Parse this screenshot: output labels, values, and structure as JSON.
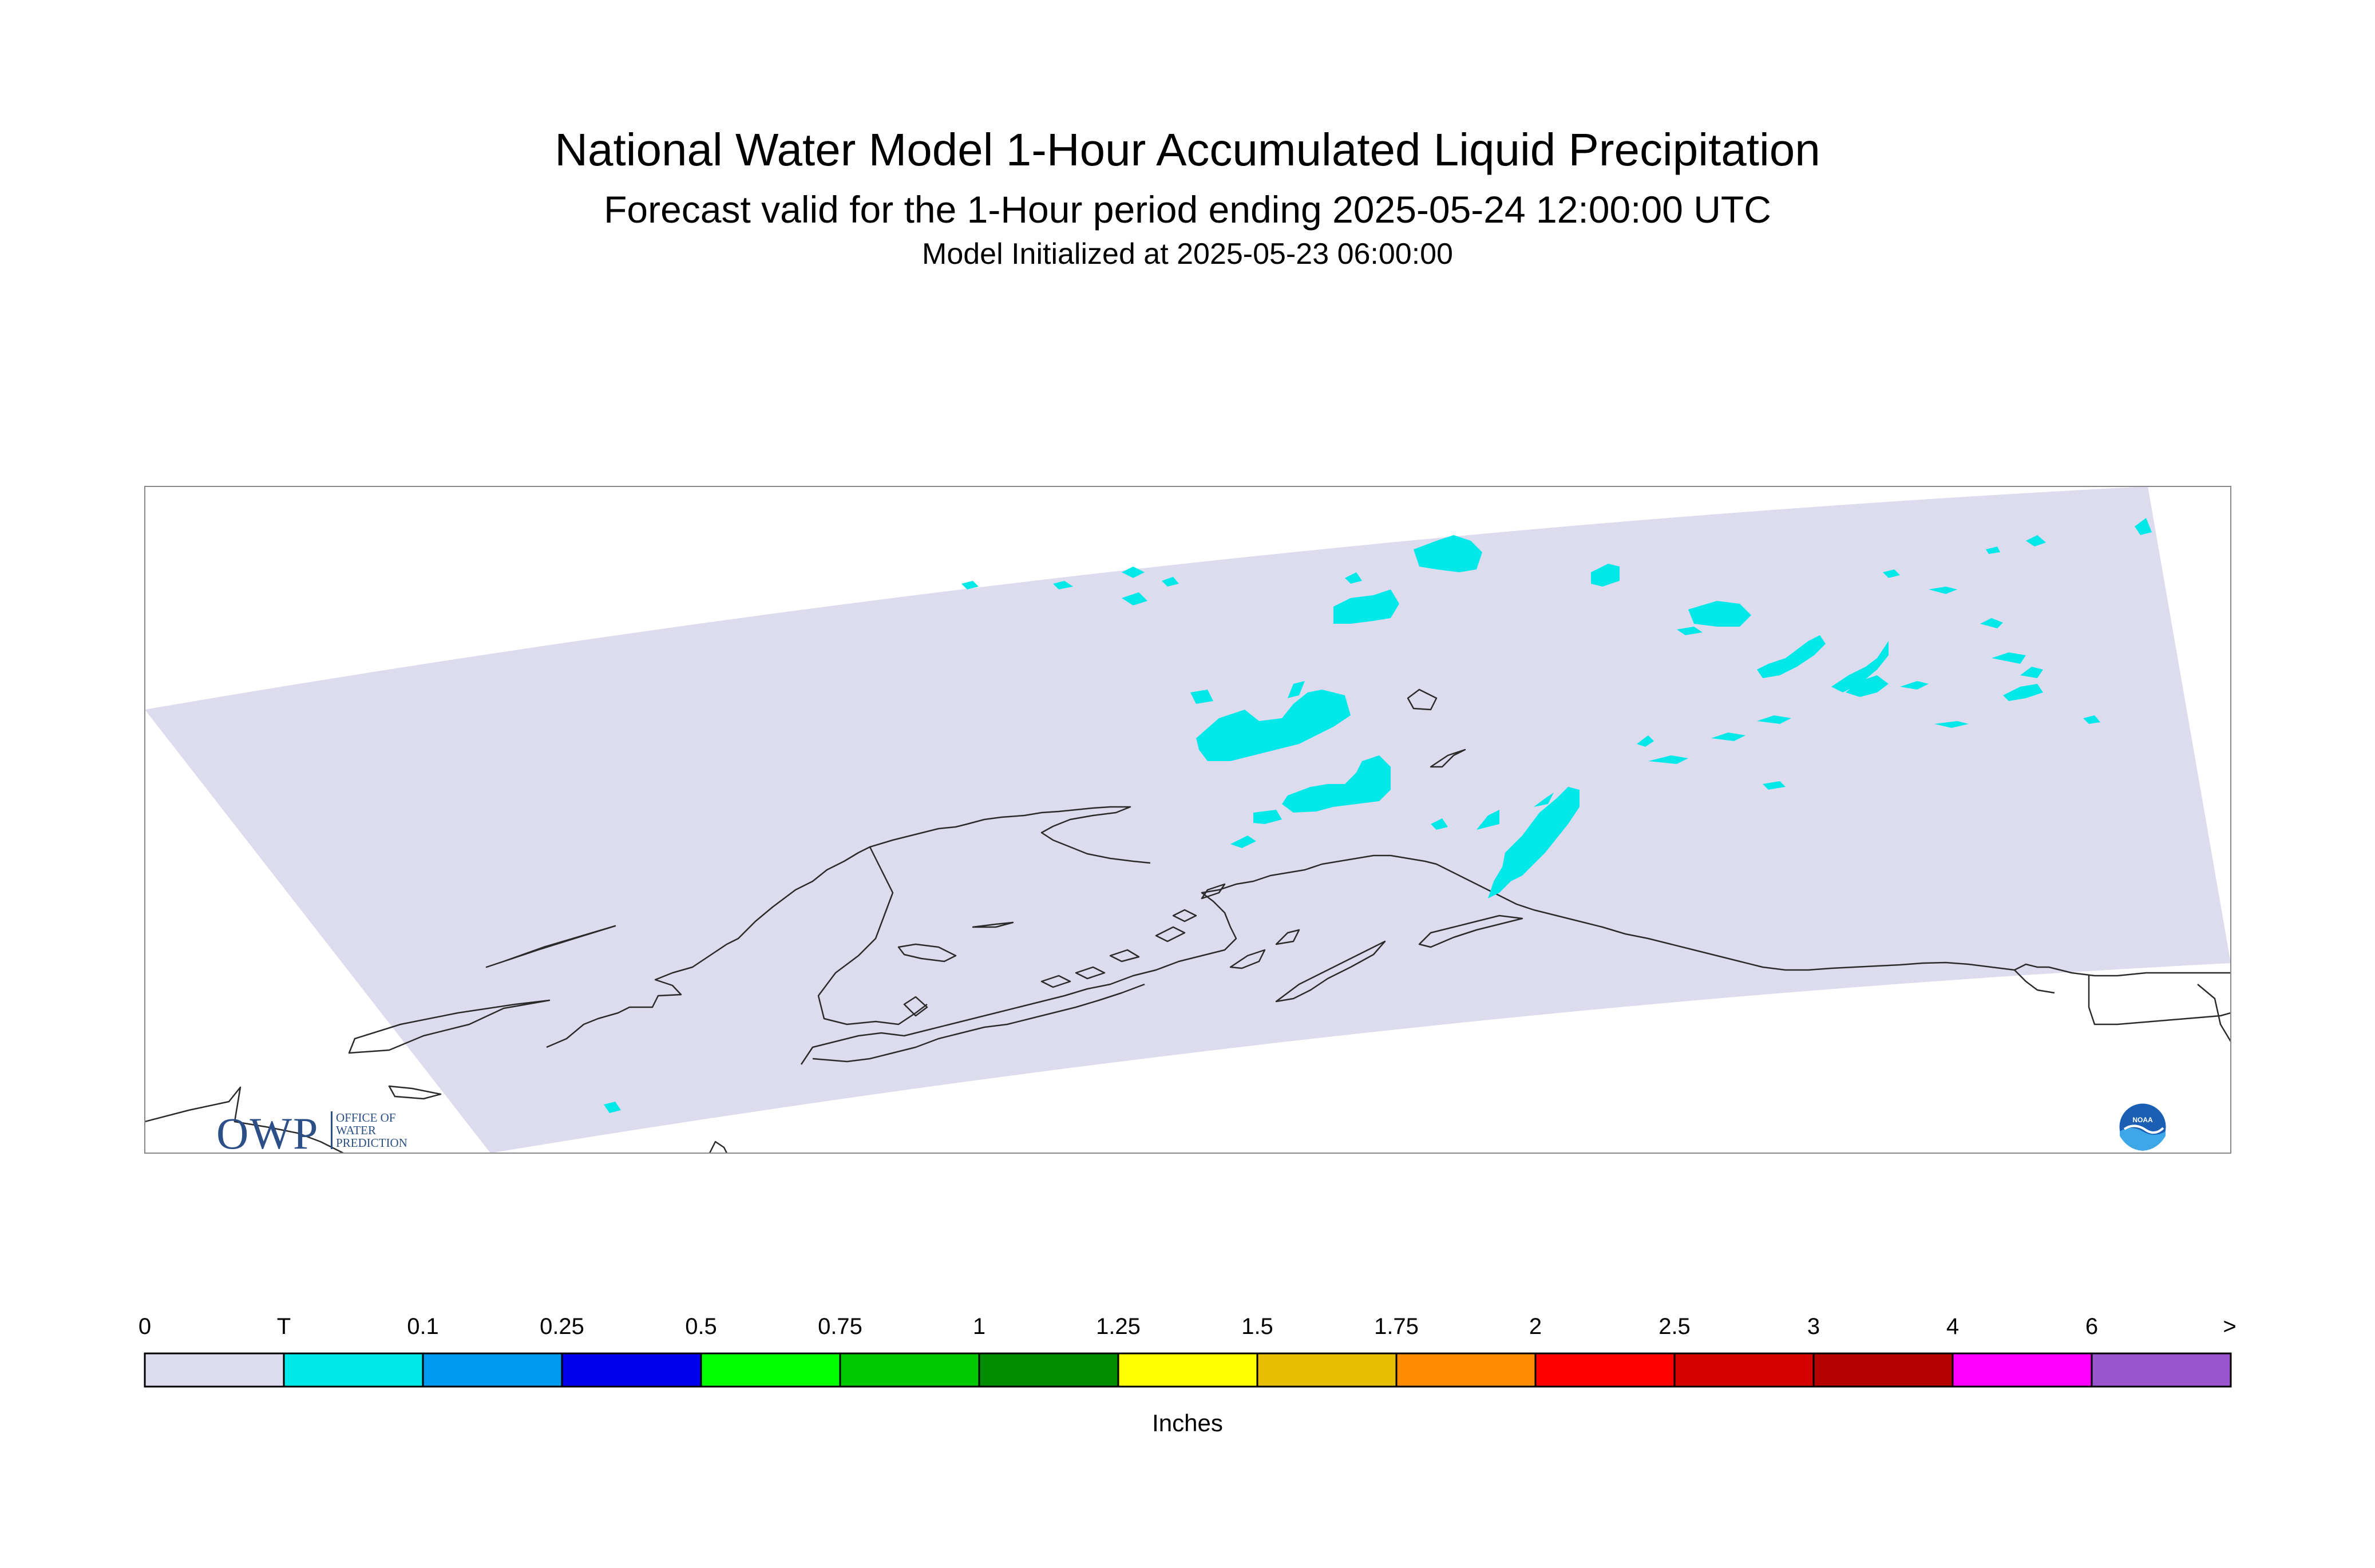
{
  "title": "National Water Model 1-Hour Accumulated Liquid Precipitation",
  "subtitle": "Forecast valid for the 1-Hour period ending 2025-05-24 12:00:00 UTC",
  "init": "Model Initialized at 2025-05-23 06:00:00",
  "logos": {
    "owp_letters": "OWP",
    "owp_sub": [
      "OFFICE OF",
      "WATER",
      "PREDICTION"
    ],
    "noaa": "NOAA"
  },
  "colors": {
    "domain": "#dcdcee",
    "trace": "#00e8e8",
    "coastline": "#2a2a2a",
    "frame": "#888888"
  },
  "colorbar": {
    "units": "Inches",
    "labels": [
      "0",
      "T",
      "0.1",
      "0.25",
      "0.5",
      "0.75",
      "1",
      "1.25",
      "1.5",
      "1.75",
      "2",
      "2.5",
      "3",
      "4",
      "6",
      ">"
    ],
    "colors": [
      "#dcdcee",
      "#00e8e8",
      "#0099f0",
      "#0000ee",
      "#00ff00",
      "#00c800",
      "#008c00",
      "#ffff00",
      "#e6c000",
      "#ff8c00",
      "#ff0000",
      "#d60000",
      "#b40000",
      "#ff00ff",
      "#9955cc"
    ]
  }
}
